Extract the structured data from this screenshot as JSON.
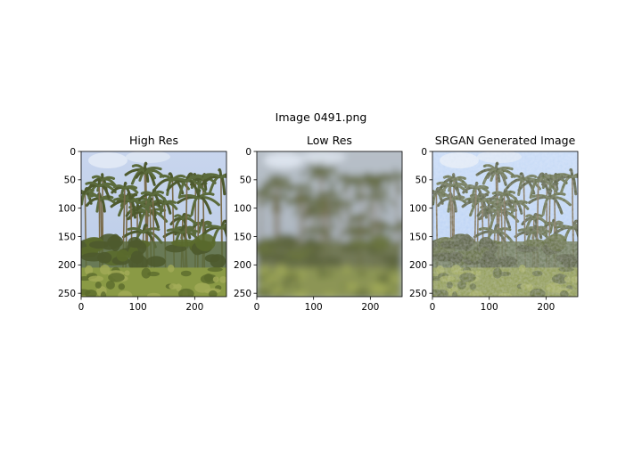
{
  "figure": {
    "title": "Image 0491.png"
  },
  "chart_data": [
    {
      "type": "image",
      "title": "High Res",
      "xticks": [
        0,
        100,
        200
      ],
      "yticks": [
        0,
        50,
        100,
        150,
        200,
        250
      ],
      "xlim": [
        0,
        256
      ],
      "ylim": [
        256,
        0
      ],
      "grid": false,
      "image": {
        "sky": "#b9cbe6",
        "sky_top": "#c9d6ee",
        "treeline": "#5b6b3c",
        "canopy": "#4e5a2e",
        "ground": "#8a9a45",
        "ground_dark": "#5a6a2c",
        "blur": 0,
        "noise": false
      }
    },
    {
      "type": "image",
      "title": "Low Res",
      "xticks": [
        0,
        100,
        200
      ],
      "yticks": [
        0,
        50,
        100,
        150,
        200,
        250
      ],
      "xlim": [
        0,
        256
      ],
      "ylim": [
        256,
        0
      ],
      "grid": false,
      "image": {
        "sky": "#a7b1bd",
        "sky_top": "#b8c0c8",
        "treeline": "#6a7148",
        "canopy": "#5e6640",
        "ground": "#8c9554",
        "ground_dark": "#6a7440",
        "blur": 4,
        "noise": false
      }
    },
    {
      "type": "image",
      "title": "SRGAN Generated Image",
      "xticks": [
        0,
        100,
        200
      ],
      "yticks": [
        0,
        50,
        100,
        150,
        200,
        250
      ],
      "xlim": [
        0,
        256
      ],
      "ylim": [
        256,
        0
      ],
      "grid": false,
      "image": {
        "sky": "#b3cdf2",
        "sky_top": "#c9dcf7",
        "treeline": "#5d6a38",
        "canopy": "#4c5628",
        "ground": "#8e9a48",
        "ground_dark": "#5b6828",
        "blur": 0,
        "noise": true
      }
    }
  ]
}
